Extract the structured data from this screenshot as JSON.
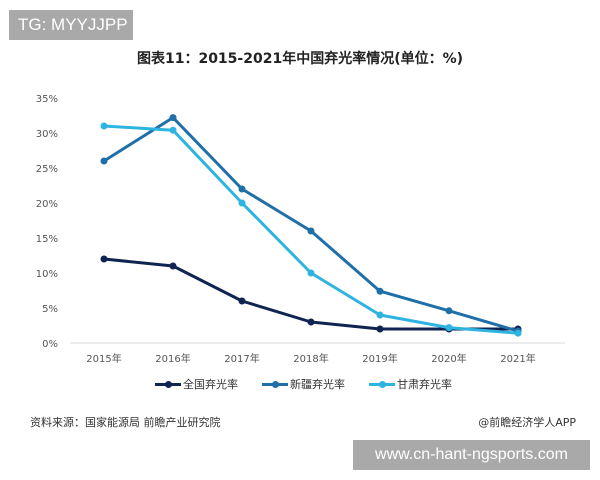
{
  "watermark_tag": "TG: MYYJJPP",
  "footer": {
    "source": "资料来源：国家能源局 前瞻产业研究院",
    "credit": "@前瞻经济学人APP",
    "site_banner": "www.cn-hant-ngsports.com"
  },
  "chart_data": {
    "type": "line",
    "title": "图表11：2015-2021年中国弃光率情况(单位：%)",
    "xlabel": "",
    "ylabel": "",
    "ylim": [
      0,
      35
    ],
    "y_ticks": [
      "0%",
      "5%",
      "10%",
      "15%",
      "20%",
      "25%",
      "30%",
      "35%"
    ],
    "categories": [
      "2015年",
      "2016年",
      "2017年",
      "2018年",
      "2019年",
      "2020年",
      "2021年"
    ],
    "grid": false,
    "legend_position": "bottom",
    "series": [
      {
        "name": "全国弃光率",
        "color": "#0f2451",
        "values": [
          12,
          11,
          6,
          3,
          2,
          2,
          2
        ]
      },
      {
        "name": "新疆弃光率",
        "color": "#1f6fa8",
        "values": [
          26,
          32.2,
          22,
          16,
          7.4,
          4.6,
          1.7
        ]
      },
      {
        "name": "甘肃弃光率",
        "color": "#2eb4e0",
        "values": [
          31,
          30.4,
          20,
          10,
          4,
          2.2,
          1.4
        ]
      }
    ]
  }
}
